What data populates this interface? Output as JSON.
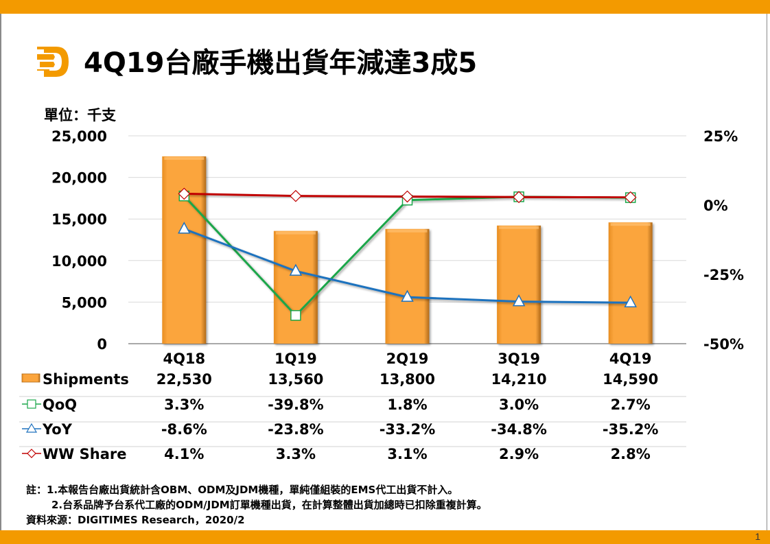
{
  "title": "4Q19台廠手機出貨年減達3成5",
  "unit_label": "單位：千支",
  "page_number": "1",
  "colors": {
    "brand_orange": "#F39A00",
    "bar_fill": "#F9A23A",
    "qoq_line": "#1AA64A",
    "yoy_line": "#1F72BE",
    "share_line": "#C00000",
    "grid": "#d9d9d9"
  },
  "logo_icon": "digitimes-d-logo-icon",
  "chart_data": {
    "type": "bar",
    "title": "4Q19台廠手機出貨年減達3成5",
    "xlabel": "",
    "ylabel": "單位：千支",
    "categories": [
      "4Q18",
      "1Q19",
      "2Q19",
      "3Q19",
      "4Q19"
    ],
    "ylim": [
      0,
      25000
    ],
    "y_ticks": [
      "25,000",
      "20,000",
      "15,000",
      "10,000",
      "5,000",
      "0"
    ],
    "y_tick_values": [
      25000,
      20000,
      15000,
      10000,
      5000,
      0
    ],
    "y2lim": [
      -50,
      25
    ],
    "y2_ticks": [
      "25%",
      "0%",
      "-25%",
      "-50%"
    ],
    "y2_tick_values": [
      25,
      0,
      -25,
      -50
    ],
    "grid": true,
    "legend": "table-bottom",
    "series": [
      {
        "name": "Shipments",
        "type": "bar",
        "axis": "left",
        "values": [
          22530,
          13560,
          13800,
          14210,
          14590
        ],
        "labels": [
          "22,530",
          "13,560",
          "13,800",
          "14,210",
          "14,590"
        ],
        "marker": "bar",
        "color": "#F9A23A"
      },
      {
        "name": "QoQ",
        "type": "line",
        "axis": "right",
        "values": [
          3.3,
          -39.8,
          1.8,
          3.0,
          2.7
        ],
        "labels": [
          "3.3%",
          "-39.8%",
          "1.8%",
          "3.0%",
          "2.7%"
        ],
        "marker": "square",
        "color": "#1AA64A"
      },
      {
        "name": "YoY",
        "type": "line",
        "axis": "right",
        "values": [
          -8.6,
          -23.8,
          -33.2,
          -34.8,
          -35.2
        ],
        "labels": [
          "-8.6%",
          "-23.8%",
          "-33.2%",
          "-34.8%",
          "-35.2%"
        ],
        "marker": "triangle",
        "color": "#1F72BE"
      },
      {
        "name": "WW Share",
        "type": "line",
        "axis": "right",
        "values": [
          4.1,
          3.3,
          3.1,
          2.9,
          2.8
        ],
        "labels": [
          "4.1%",
          "3.3%",
          "3.1%",
          "2.9%",
          "2.8%"
        ],
        "marker": "diamond",
        "color": "#C00000"
      }
    ]
  },
  "footnotes": {
    "note1": "註：1.本報告台廠出貨統計含OBM、ODM及JDM機種，單純僅組裝的EMS代工出貨不計入。",
    "note2": "2.台系品牌予台系代工廠的ODM/JDM訂單機種出貨，在計算整體出貨加總時已扣除重複計算。",
    "source": "資料來源：DIGITIMES Research，2020/2"
  }
}
